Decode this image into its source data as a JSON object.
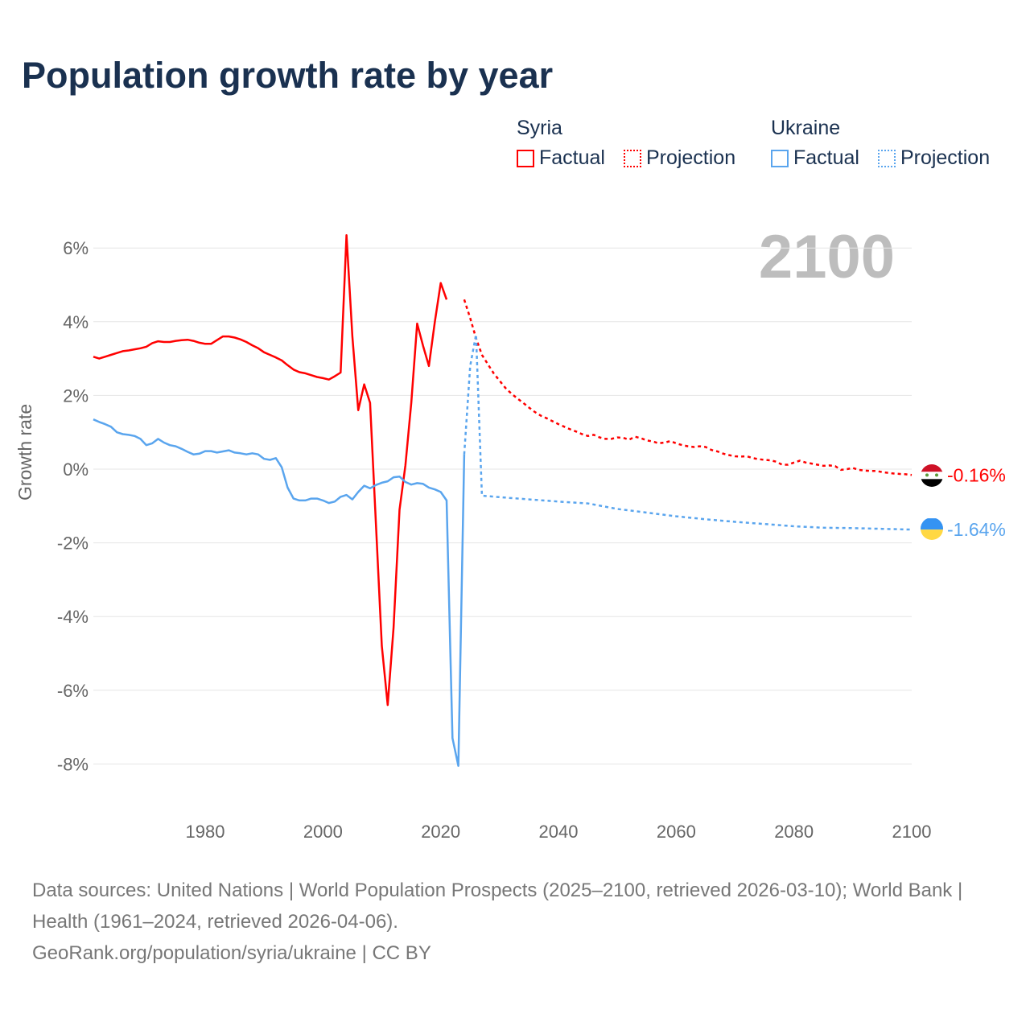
{
  "title": "Population growth rate by year",
  "current_year": "2100",
  "legend": {
    "groups": [
      {
        "name": "Syria",
        "factual": "Factual",
        "projection": "Projection",
        "color": "#ff0000"
      },
      {
        "name": "Ukraine",
        "factual": "Factual",
        "projection": "Projection",
        "color": "#5aa5ee"
      }
    ]
  },
  "footer": {
    "sources": "Data sources: United Nations | World Population Prospects (2025–2100, retrieved 2026-03-10); World Bank | Health (1961–2024, retrieved 2026-04-06).",
    "credit": "GeoRank.org/population/syria/ukraine | CC BY"
  },
  "chart_data": {
    "type": "line",
    "title": "Population growth rate by year",
    "xlabel": "",
    "ylabel": "Growth rate",
    "xlim": [
      1961,
      2100
    ],
    "ylim": [
      -9,
      7
    ],
    "grid": true,
    "x_ticks": [
      1980,
      2000,
      2020,
      2040,
      2060,
      2080,
      2100
    ],
    "x_tick_labels": [
      "1980",
      "2000",
      "2020",
      "2040",
      "2060",
      "2080",
      "2100"
    ],
    "y_ticks": [
      6,
      4,
      2,
      0,
      -2,
      -4,
      -6,
      -8
    ],
    "y_tick_labels": [
      "6%",
      "4%",
      "2%",
      "0%",
      "-2%",
      "-4%",
      "-6%",
      "-8%"
    ],
    "legend_position": "top-right",
    "series": [
      {
        "name": "Syria",
        "kind": "Factual",
        "color": "#ff0000",
        "style": "solid",
        "x_start": 1961,
        "values": [
          3.05,
          3.0,
          3.05,
          3.1,
          3.15,
          3.2,
          3.22,
          3.25,
          3.28,
          3.32,
          3.42,
          3.47,
          3.45,
          3.45,
          3.48,
          3.5,
          3.51,
          3.48,
          3.43,
          3.4,
          3.4,
          3.5,
          3.6,
          3.6,
          3.57,
          3.52,
          3.45,
          3.36,
          3.28,
          3.17,
          3.1,
          3.03,
          2.95,
          2.82,
          2.7,
          2.63,
          2.6,
          2.55,
          2.5,
          2.47,
          2.43,
          2.52,
          2.62,
          6.35,
          3.6,
          1.6,
          2.3,
          1.8,
          -1.5,
          -4.8,
          -6.4,
          -4.3,
          -1.1,
          0.1,
          1.8,
          3.95,
          3.35,
          2.8,
          4.0,
          5.05,
          4.6
        ]
      },
      {
        "name": "Syria",
        "kind": "Projection",
        "color": "#ff0000",
        "style": "dotted",
        "x_start": 2024,
        "values": [
          4.6,
          4.1,
          3.55,
          3.1,
          2.85,
          2.6,
          2.4,
          2.2,
          2.05,
          1.92,
          1.8,
          1.67,
          1.55,
          1.45,
          1.38,
          1.3,
          1.22,
          1.15,
          1.08,
          1.02,
          0.95,
          0.9,
          0.93,
          0.86,
          0.82,
          0.82,
          0.86,
          0.85,
          0.8,
          0.88,
          0.84,
          0.78,
          0.75,
          0.7,
          0.72,
          0.76,
          0.7,
          0.65,
          0.62,
          0.6,
          0.62,
          0.6,
          0.52,
          0.48,
          0.42,
          0.38,
          0.35,
          0.34,
          0.35,
          0.3,
          0.27,
          0.25,
          0.24,
          0.2,
          0.12,
          0.12,
          0.18,
          0.23,
          0.18,
          0.15,
          0.12,
          0.09,
          0.1,
          0.08,
          -0.02,
          0.0,
          0.03,
          -0.02,
          -0.04,
          -0.05,
          -0.05,
          -0.08,
          -0.1,
          -0.12,
          -0.13,
          -0.14,
          -0.16
        ]
      },
      {
        "name": "Ukraine",
        "kind": "Factual",
        "color": "#5aa5ee",
        "style": "solid",
        "x_start": 1961,
        "values": [
          1.35,
          1.28,
          1.22,
          1.15,
          1.0,
          0.95,
          0.93,
          0.9,
          0.82,
          0.65,
          0.7,
          0.82,
          0.72,
          0.65,
          0.62,
          0.55,
          0.47,
          0.4,
          0.42,
          0.49,
          0.49,
          0.45,
          0.48,
          0.51,
          0.45,
          0.43,
          0.4,
          0.43,
          0.4,
          0.28,
          0.25,
          0.3,
          0.05,
          -0.5,
          -0.8,
          -0.85,
          -0.85,
          -0.8,
          -0.8,
          -0.85,
          -0.92,
          -0.88,
          -0.75,
          -0.7,
          -0.82,
          -0.62,
          -0.45,
          -0.52,
          -0.43,
          -0.37,
          -0.33,
          -0.22,
          -0.2,
          -0.35,
          -0.42,
          -0.38,
          -0.4,
          -0.5,
          -0.55,
          -0.62,
          -0.85,
          -7.3,
          -8.05,
          0.4
        ]
      },
      {
        "name": "Ukraine",
        "kind": "Projection",
        "color": "#5aa5ee",
        "style": "dotted",
        "x": [
          2024,
          2025,
          2026,
          2027,
          2030,
          2035,
          2040,
          2045,
          2050,
          2055,
          2060,
          2065,
          2070,
          2075,
          2080,
          2085,
          2090,
          2095,
          2100
        ],
        "values": [
          0.4,
          2.8,
          3.65,
          -0.72,
          -0.76,
          -0.82,
          -0.88,
          -0.93,
          -1.08,
          -1.18,
          -1.28,
          -1.36,
          -1.43,
          -1.49,
          -1.55,
          -1.59,
          -1.6,
          -1.62,
          -1.64
        ]
      }
    ],
    "end_labels": [
      {
        "country": "Syria",
        "value": -0.16,
        "text": "-0.16%",
        "color": "#ff0000"
      },
      {
        "country": "Ukraine",
        "value": -1.64,
        "text": "-1.64%",
        "color": "#5aa5ee"
      }
    ]
  }
}
